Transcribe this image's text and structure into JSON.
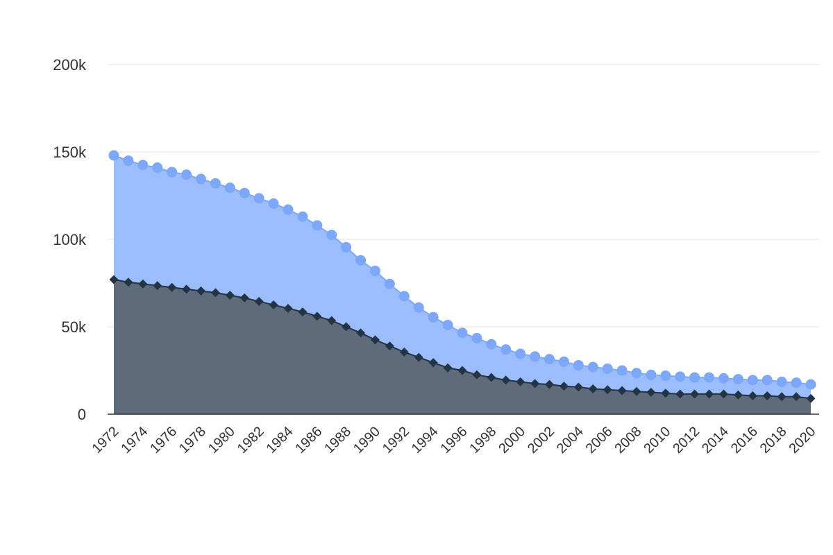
{
  "chart_data": {
    "type": "area",
    "x": [
      1972,
      1973,
      1974,
      1975,
      1976,
      1977,
      1978,
      1979,
      1980,
      1981,
      1982,
      1983,
      1984,
      1985,
      1986,
      1987,
      1988,
      1989,
      1990,
      1991,
      1992,
      1993,
      1994,
      1995,
      1996,
      1997,
      1998,
      1999,
      2000,
      2001,
      2002,
      2003,
      2004,
      2005,
      2006,
      2007,
      2008,
      2009,
      2010,
      2011,
      2012,
      2013,
      2014,
      2015,
      2016,
      2017,
      2018,
      2019,
      2020
    ],
    "x_tick_labels": [
      "1972",
      "1974",
      "1976",
      "1978",
      "1980",
      "1982",
      "1984",
      "1986",
      "1988",
      "1990",
      "1992",
      "1994",
      "1996",
      "1998",
      "2000",
      "2002",
      "2004",
      "2006",
      "2008",
      "2010",
      "2012",
      "2014",
      "2016",
      "2018",
      "2020"
    ],
    "y_tick_labels": [
      "0",
      "50k",
      "100k",
      "150k",
      "200k"
    ],
    "y_ticks": [
      0,
      50000,
      100000,
      150000,
      200000
    ],
    "ylim": [
      0,
      200000
    ],
    "grid": true,
    "legend": "none",
    "title": "",
    "xlabel": "",
    "ylabel": "",
    "series": [
      {
        "color": "#7da7f9",
        "fill": "#9bbdfb",
        "marker": "circle",
        "values": [
          148000,
          145000,
          142500,
          141000,
          138500,
          137000,
          134500,
          132000,
          129500,
          126500,
          123500,
          120500,
          117000,
          113000,
          108000,
          102500,
          95500,
          88000,
          82000,
          74500,
          67500,
          61000,
          55500,
          51000,
          46500,
          43500,
          40000,
          37000,
          34500,
          33000,
          31500,
          30000,
          28000,
          27000,
          26000,
          25000,
          23500,
          22500,
          22000,
          21500,
          21000,
          21000,
          20500,
          20000,
          19500,
          19500,
          18500,
          18000,
          17000
        ]
      },
      {
        "color": "#243447",
        "fill": "#5d6b7a",
        "marker": "diamond",
        "values": [
          77000,
          75500,
          74500,
          73500,
          72500,
          71500,
          70500,
          69500,
          68000,
          66500,
          64500,
          62500,
          60500,
          58500,
          56000,
          53500,
          50000,
          46500,
          42500,
          39000,
          35500,
          32500,
          29500,
          26500,
          25000,
          22500,
          21000,
          19500,
          18500,
          17500,
          17000,
          16000,
          15500,
          14500,
          14000,
          13500,
          13000,
          12500,
          12000,
          11500,
          11500,
          11500,
          11500,
          11000,
          10500,
          10500,
          10000,
          10000,
          9000
        ]
      }
    ]
  }
}
